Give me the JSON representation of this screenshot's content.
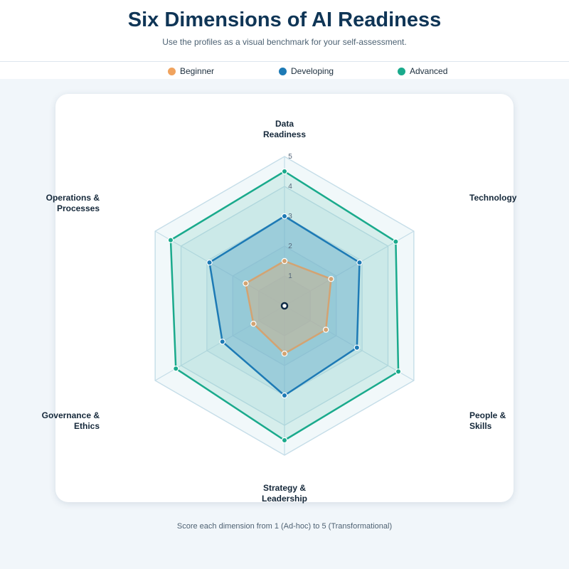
{
  "header": {
    "title": "Six Dimensions of AI Readiness",
    "subtitle": "Use the profiles as a visual benchmark for your self-assessment."
  },
  "footer": {
    "note": "Score each dimension from 1 (Ad-hoc) to 5 (Transformational)"
  },
  "chart_data": {
    "type": "radar",
    "categories": [
      "Data Readiness",
      "Technology",
      "People & Skills",
      "Strategy & Leadership",
      "Governance & Ethics",
      "Operations & Processes"
    ],
    "axis_label_lines": [
      [
        "Data",
        "Readiness"
      ],
      [
        "Technology"
      ],
      [
        "People &",
        "Skills"
      ],
      [
        "Strategy &",
        "Leadership"
      ],
      [
        "Governance &",
        "Ethics"
      ],
      [
        "Operations &",
        "Processes"
      ]
    ],
    "range": [
      0,
      5
    ],
    "ticks": [
      1,
      2,
      3,
      4,
      5
    ],
    "legend_position": "top",
    "series": [
      {
        "name": "Advanced",
        "color": "#1aaa8c",
        "values": [
          4.5,
          4.3,
          4.4,
          4.5,
          4.2,
          4.4
        ]
      },
      {
        "name": "Developing",
        "color": "#1d7ab5",
        "values": [
          3.0,
          2.9,
          2.8,
          3.0,
          2.4,
          2.9
        ]
      },
      {
        "name": "Beginner",
        "color": "#f0a35e",
        "values": [
          1.5,
          1.8,
          1.6,
          1.6,
          1.2,
          1.5
        ]
      }
    ],
    "legend_order": [
      "Beginner",
      "Developing",
      "Advanced"
    ]
  }
}
